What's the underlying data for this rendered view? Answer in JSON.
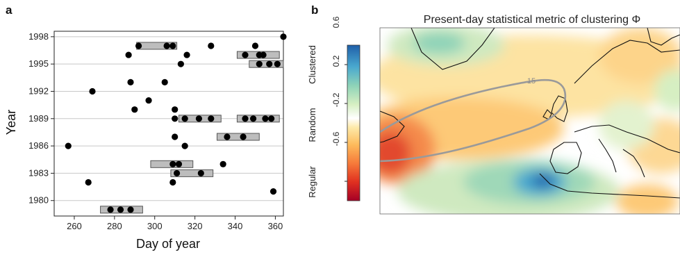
{
  "chart_data": [
    {
      "type": "scatter",
      "panel_letter": "a",
      "xlabel": "Day of year",
      "ylabel": "Year",
      "xlim": [
        250,
        364
      ],
      "ylim": [
        1978.3,
        1998.6
      ],
      "xticks": [
        260,
        280,
        300,
        320,
        340,
        360
      ],
      "yticks": [
        1980,
        1983,
        1986,
        1989,
        1992,
        1995,
        1998
      ],
      "grid": "horizontal",
      "points": [
        {
          "x": 278,
          "y": 1979
        },
        {
          "x": 283,
          "y": 1979
        },
        {
          "x": 288,
          "y": 1979
        },
        {
          "x": 359,
          "y": 1981
        },
        {
          "x": 267,
          "y": 1982
        },
        {
          "x": 309,
          "y": 1982
        },
        {
          "x": 311,
          "y": 1983
        },
        {
          "x": 323,
          "y": 1983
        },
        {
          "x": 309,
          "y": 1984
        },
        {
          "x": 312,
          "y": 1984
        },
        {
          "x": 334,
          "y": 1984
        },
        {
          "x": 257,
          "y": 1986
        },
        {
          "x": 315,
          "y": 1986
        },
        {
          "x": 310,
          "y": 1987
        },
        {
          "x": 336,
          "y": 1987
        },
        {
          "x": 344,
          "y": 1987
        },
        {
          "x": 310,
          "y": 1989
        },
        {
          "x": 315,
          "y": 1989
        },
        {
          "x": 322,
          "y": 1989
        },
        {
          "x": 328,
          "y": 1989
        },
        {
          "x": 345,
          "y": 1989
        },
        {
          "x": 349,
          "y": 1989
        },
        {
          "x": 355,
          "y": 1989
        },
        {
          "x": 358,
          "y": 1989
        },
        {
          "x": 290,
          "y": 1990
        },
        {
          "x": 310,
          "y": 1990
        },
        {
          "x": 297,
          "y": 1991
        },
        {
          "x": 269,
          "y": 1992
        },
        {
          "x": 288,
          "y": 1993
        },
        {
          "x": 305,
          "y": 1993
        },
        {
          "x": 313,
          "y": 1995
        },
        {
          "x": 352,
          "y": 1995
        },
        {
          "x": 357,
          "y": 1995
        },
        {
          "x": 361,
          "y": 1995
        },
        {
          "x": 287,
          "y": 1996
        },
        {
          "x": 316,
          "y": 1996
        },
        {
          "x": 345,
          "y": 1996
        },
        {
          "x": 352,
          "y": 1996
        },
        {
          "x": 354,
          "y": 1996
        },
        {
          "x": 292,
          "y": 1997
        },
        {
          "x": 306,
          "y": 1997
        },
        {
          "x": 309,
          "y": 1997
        },
        {
          "x": 328,
          "y": 1997
        },
        {
          "x": 350,
          "y": 1997
        },
        {
          "x": 364,
          "y": 1998
        }
      ],
      "boxes": [
        {
          "x0": 273,
          "x1": 294,
          "y": 1979
        },
        {
          "x0": 308,
          "x1": 329,
          "y": 1983
        },
        {
          "x0": 298,
          "x1": 319,
          "y": 1984
        },
        {
          "x0": 331,
          "x1": 352,
          "y": 1987
        },
        {
          "x0": 312,
          "x1": 333,
          "y": 1989
        },
        {
          "x0": 341,
          "x1": 362,
          "y": 1989
        },
        {
          "x0": 347,
          "x1": 364,
          "y": 1995
        },
        {
          "x0": 341,
          "x1": 362,
          "y": 1996
        },
        {
          "x0": 291,
          "x1": 311,
          "y": 1997
        }
      ]
    },
    {
      "type": "heatmap",
      "panel_letter": "b",
      "title": "Present-day statistical metric of clustering Φ",
      "colorbar": {
        "ticks": [
          "0.6",
          "0.2",
          "-0.2",
          "-0.6"
        ],
        "category_labels": [
          "Clustered",
          "Random",
          "Regular"
        ],
        "range": [
          -0.8,
          0.8
        ]
      },
      "contour_label": "15"
    }
  ]
}
